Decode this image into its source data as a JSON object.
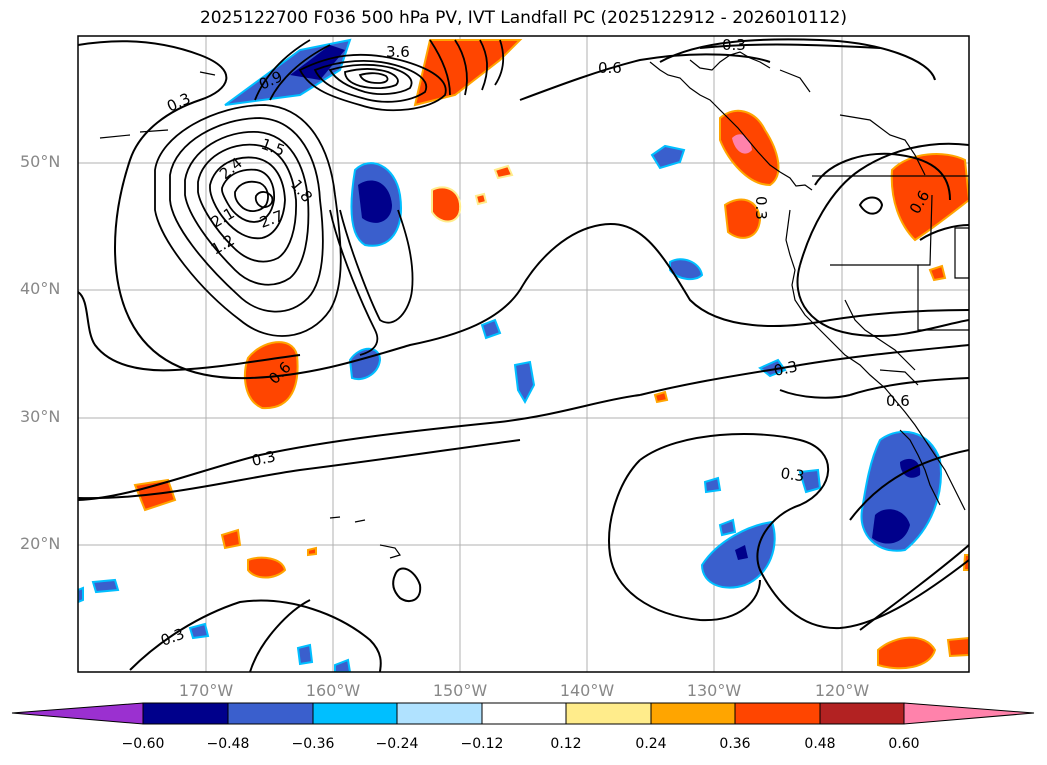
{
  "title": "2025122700 F036 500 hPa PV, IVT Landfall PC (2025122912 - 2026010112)",
  "lat_labels": [
    "50°N",
    "40°N",
    "30°N",
    "20°N"
  ],
  "lon_labels": [
    "170°W",
    "160°W",
    "150°W",
    "140°W",
    "130°W",
    "120°W"
  ],
  "contour_labels": [
    "0.3",
    "0.6",
    "0.9",
    "1.2",
    "1.5",
    "1.8",
    "2.1",
    "2.4",
    "2.7",
    "3.6"
  ],
  "colorbar": {
    "ticks": [
      "−0.60",
      "−0.48",
      "−0.36",
      "−0.24",
      "−0.12",
      "0.12",
      "0.24",
      "0.36",
      "0.48",
      "0.60"
    ],
    "colors": [
      "#9b30d0",
      "#00008b",
      "#3a5fcd",
      "#00bfff",
      "#b0e2ff",
      "#ffffff",
      "#ffec8b",
      "#ffa500",
      "#ff4500",
      "#b22222",
      "#ff82ab"
    ]
  }
}
